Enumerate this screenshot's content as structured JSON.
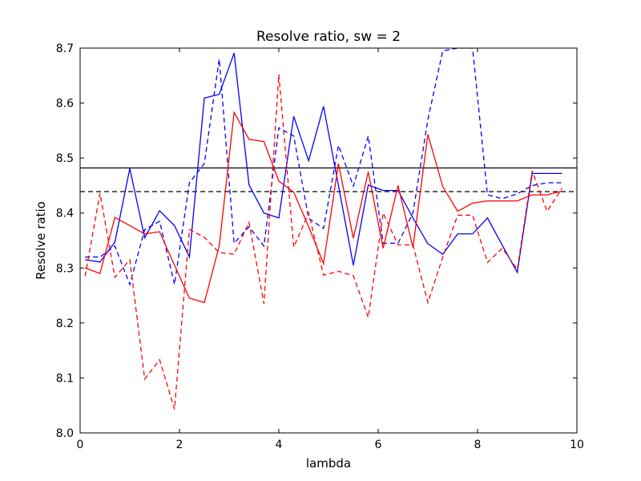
{
  "chart_data": {
    "type": "line",
    "title": "Resolve ratio, sw = 2",
    "xlabel": "lambda",
    "ylabel": "Resolve ratio",
    "xlim": [
      0,
      10
    ],
    "ylim": [
      8.0,
      8.7
    ],
    "xticks": [
      "0",
      "2",
      "4",
      "6",
      "8",
      "10"
    ],
    "yticks": [
      "8.0",
      "8.1",
      "8.2",
      "8.3",
      "8.4",
      "8.5",
      "8.6",
      "8.7"
    ],
    "grid": false,
    "legend": "none",
    "x": [
      0.1,
      0.4,
      0.7,
      1.0,
      1.3,
      1.6,
      1.9,
      2.2,
      2.5,
      2.8,
      3.1,
      3.4,
      3.7,
      4.0,
      4.3,
      4.6,
      4.9,
      5.2,
      5.5,
      5.8,
      6.1,
      6.4,
      6.7,
      7.0,
      7.3,
      7.6,
      7.9,
      8.2,
      8.5,
      8.8,
      9.1,
      9.4,
      9.7
    ],
    "series": [
      {
        "color": "#0000ff",
        "dash": "solid",
        "values": [
          8.315,
          8.311,
          8.347,
          8.481,
          8.355,
          8.404,
          8.377,
          8.32,
          8.609,
          8.616,
          8.691,
          8.451,
          8.4,
          8.391,
          8.576,
          8.495,
          8.594,
          8.45,
          8.305,
          8.451,
          8.441,
          8.441,
          8.391,
          8.344,
          8.325,
          8.362,
          8.362,
          8.391,
          8.341,
          8.292,
          8.472,
          8.472,
          8.472
        ]
      },
      {
        "color": "#0000ff",
        "dash": "dashed",
        "values": [
          8.32,
          8.32,
          8.34,
          8.27,
          8.37,
          8.385,
          8.27,
          8.455,
          8.49,
          8.68,
          8.345,
          8.375,
          8.34,
          8.555,
          8.54,
          8.39,
          8.372,
          8.523,
          8.449,
          8.54,
          8.345,
          8.345,
          8.4,
          8.57,
          8.695,
          8.7,
          8.7,
          8.433,
          8.426,
          8.435,
          8.45,
          8.455,
          8.455
        ]
      },
      {
        "color": "#ff0000",
        "dash": "solid",
        "values": [
          8.3,
          8.29,
          8.392,
          8.377,
          8.362,
          8.366,
          8.305,
          8.245,
          8.237,
          8.34,
          8.583,
          8.534,
          8.53,
          8.458,
          8.438,
          8.375,
          8.308,
          8.49,
          8.354,
          8.475,
          8.336,
          8.45,
          8.337,
          8.543,
          8.448,
          8.403,
          8.418,
          8.422,
          8.422,
          8.422,
          8.433,
          8.433,
          8.44
        ]
      },
      {
        "color": "#ff0000",
        "dash": "dashed",
        "values": [
          8.285,
          8.436,
          8.283,
          8.315,
          8.098,
          8.133,
          8.043,
          8.37,
          8.356,
          8.328,
          8.325,
          8.383,
          8.235,
          8.652,
          8.338,
          8.4,
          8.287,
          8.294,
          8.286,
          8.21,
          8.4,
          8.342,
          8.342,
          8.237,
          8.32,
          8.396,
          8.396,
          8.31,
          8.336,
          8.297,
          8.477,
          8.403,
          8.445
        ]
      }
    ],
    "hlines": [
      {
        "y": 8.482,
        "color": "#000000",
        "dash": "solid"
      },
      {
        "y": 8.439,
        "color": "#000000",
        "dash": "dashed"
      }
    ]
  }
}
